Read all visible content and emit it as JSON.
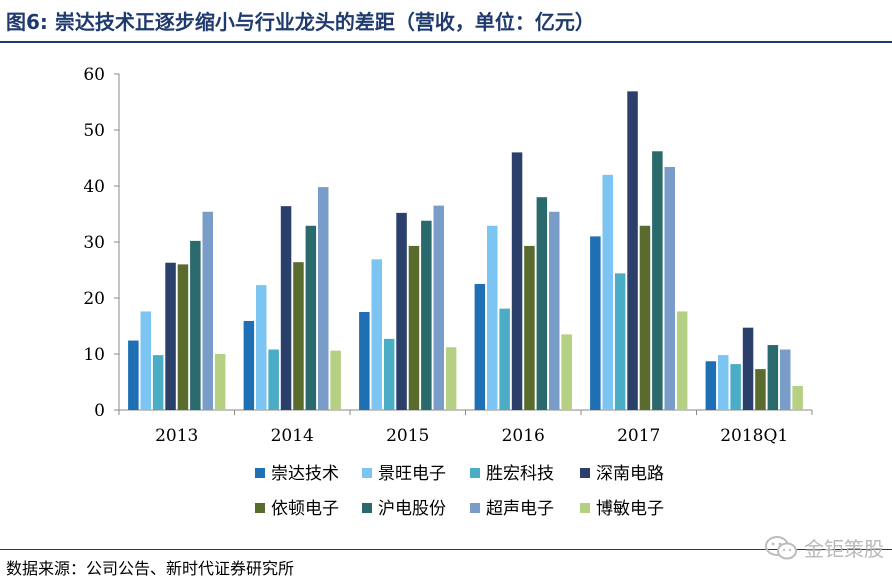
{
  "header": {
    "title": "图6:  崇达技术正逐步缩小与行业龙头的差距（营收，单位：亿元）"
  },
  "footer": {
    "source": "数据来源：公司公告、新时代证券研究所",
    "watermark": "金钜策股"
  },
  "chart_data": {
    "type": "bar",
    "title": "",
    "xlabel": "",
    "ylabel": "",
    "ylim": [
      0,
      60
    ],
    "yticks": [
      0,
      10,
      20,
      30,
      40,
      50,
      60
    ],
    "grid": false,
    "legend_position": "bottom",
    "categories": [
      "2013",
      "2014",
      "2015",
      "2016",
      "2017",
      "2018Q1"
    ],
    "series": [
      {
        "name": "崇达技术",
        "color": "#1f6fb5",
        "values": [
          12.4,
          15.9,
          17.5,
          22.5,
          31.0,
          8.7
        ]
      },
      {
        "name": "景旺电子",
        "color": "#7cc4f2",
        "values": [
          17.6,
          22.3,
          26.9,
          32.9,
          42.0,
          9.8
        ]
      },
      {
        "name": "胜宏科技",
        "color": "#4bacc6",
        "values": [
          9.8,
          10.8,
          12.7,
          18.1,
          24.4,
          8.2
        ]
      },
      {
        "name": "深南电路",
        "color": "#2b3f6b",
        "values": [
          26.3,
          36.4,
          35.2,
          46.0,
          56.9,
          14.7
        ]
      },
      {
        "name": "依顿电子",
        "color": "#5a6b2e",
        "values": [
          26.0,
          26.4,
          29.3,
          29.3,
          32.9,
          7.3
        ]
      },
      {
        "name": "沪电股份",
        "color": "#2a6a6c",
        "values": [
          30.2,
          32.9,
          33.8,
          38.0,
          46.2,
          11.6
        ]
      },
      {
        "name": "超声电子",
        "color": "#7a9cc8",
        "values": [
          35.4,
          39.8,
          36.5,
          35.4,
          43.4,
          10.8
        ]
      },
      {
        "name": "博敏电子",
        "color": "#b5cf83",
        "values": [
          10.0,
          10.6,
          11.2,
          13.5,
          17.6,
          4.3
        ]
      }
    ]
  }
}
